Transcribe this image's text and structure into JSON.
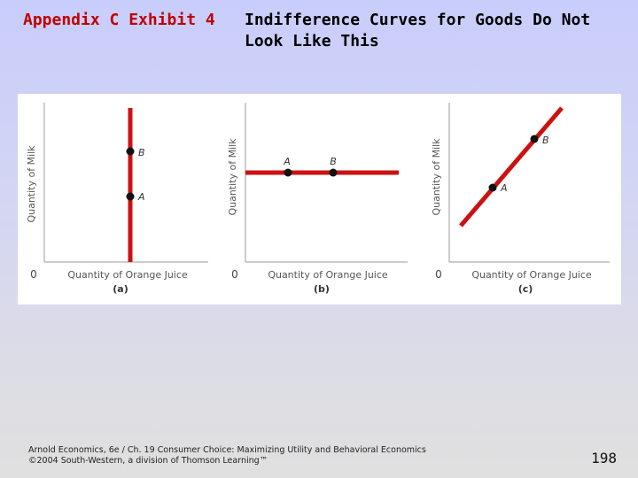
{
  "slide": {
    "exhibit_label": "Appendix C Exhibit 4",
    "title": "Indifference Curves for Goods Do Not Look Like This"
  },
  "panels": [
    {
      "id": "a",
      "caption": "(a)",
      "y_axis_label": "Quantity of Milk",
      "x_axis_label": "Quantity of Orange Juice",
      "origin_label": "0",
      "curve": "vertical",
      "points": [
        {
          "label": "B"
        },
        {
          "label": "A"
        }
      ]
    },
    {
      "id": "b",
      "caption": "(b)",
      "y_axis_label": "Quantity of Milk",
      "x_axis_label": "Quantity of Orange Juice",
      "origin_label": "0",
      "curve": "horizontal",
      "points": [
        {
          "label": "A"
        },
        {
          "label": "B"
        }
      ]
    },
    {
      "id": "c",
      "caption": "(c)",
      "y_axis_label": "Quantity of Milk",
      "x_axis_label": "Quantity of Orange Juice",
      "origin_label": "0",
      "curve": "upward-sloping",
      "points": [
        {
          "label": "B"
        },
        {
          "label": "A"
        }
      ]
    }
  ],
  "colors": {
    "curve": "#cc1111",
    "title_label": "#c00000"
  },
  "footer": {
    "line1": "Arnold Economics, 6e / Ch. 19 Consumer Choice: Maximizing Utility and Behavioral Economics",
    "line2": "©2004 South-Western, a division of Thomson Learning™"
  },
  "page_number": "198"
}
